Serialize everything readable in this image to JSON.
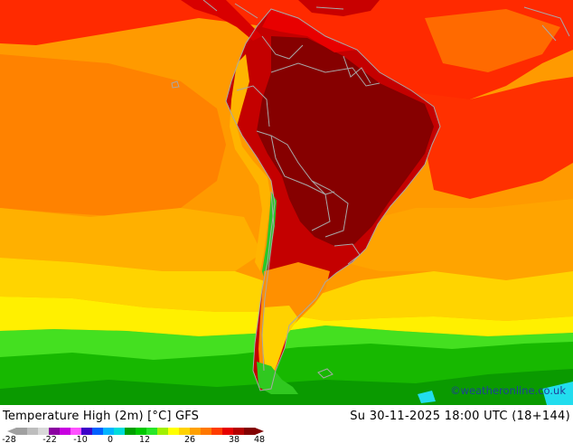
{
  "title": "Temperature High (2m) [°C] GFS",
  "datetime": "Su 30-11-2025 18:00 UTC (18+144)",
  "credit": "©weatheronline.co.uk",
  "legend": {
    "ticks": [
      "-28",
      "-22",
      "-10",
      "0",
      "12",
      "26",
      "38",
      "48"
    ],
    "colors": [
      "#a0a0a0",
      "#bdbdbd",
      "#d9d9d9",
      "#8a00a0",
      "#c800e0",
      "#ff50ff",
      "#3c00c8",
      "#0060ff",
      "#00b4ff",
      "#00dcdc",
      "#00a000",
      "#00c800",
      "#28e628",
      "#a0f000",
      "#ffff00",
      "#ffd200",
      "#ffa000",
      "#ff7800",
      "#ff3c00",
      "#e60000",
      "#b40000",
      "#820000"
    ]
  },
  "palette": {
    "ocean_warm": "#ff8a00",
    "ocean_mid": "#ffa800",
    "ocean_cool": "#ffd400",
    "yellow": "#ffee00",
    "green_light": "#44e020",
    "green": "#17b800",
    "green_dark": "#0a9a00",
    "cyan": "#22ddee",
    "red": "#f01800",
    "red_dark": "#c40000",
    "maroon": "#860000",
    "border": "#a8a8a8"
  }
}
